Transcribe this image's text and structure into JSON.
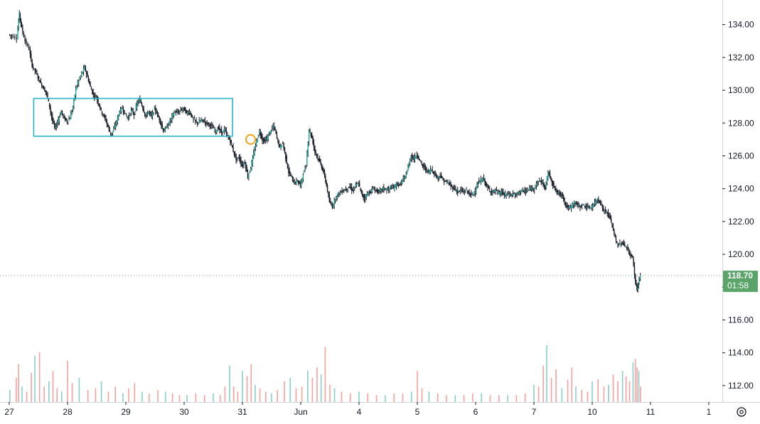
{
  "chart_data": {
    "type": "candlestick",
    "title": "",
    "xlabel": "",
    "ylabel": "",
    "ylim": [
      111,
      135.5
    ],
    "y_ticks": [
      112,
      114,
      116,
      118,
      120,
      122,
      124,
      126,
      128,
      130,
      132,
      134
    ],
    "y_tick_labels": [
      "112.00",
      "114.00",
      "116.00",
      "118.00",
      "120.00",
      "122.00",
      "124.00",
      "126.00",
      "128.00",
      "130.00",
      "132.00",
      "134.00"
    ],
    "x_tick_labels": [
      "27",
      "28",
      "29",
      "30",
      "31",
      "Jun",
      "4",
      "5",
      "6",
      "7",
      "10",
      "11",
      "1"
    ],
    "x_tick_days": [
      0,
      1,
      2,
      3,
      4,
      5,
      6,
      7,
      8,
      9,
      10,
      11,
      12
    ],
    "x_range": [
      0.0,
      12.1
    ],
    "grid": false,
    "last_price": 118.7,
    "last_price_label": "118.70",
    "countdown_label": "01:58",
    "colors": {
      "up": "#26a69a",
      "down": "#ef5350",
      "wick": "#131722",
      "box": "#26b6c9",
      "marker": "#f2a118",
      "price_tag": "#5aa469"
    },
    "price_path": [
      [
        0.0,
        133.4
      ],
      [
        0.05,
        133.3
      ],
      [
        0.14,
        133.2
      ],
      [
        0.18,
        134.7
      ],
      [
        0.22,
        133.8
      ],
      [
        0.28,
        133.0
      ],
      [
        0.35,
        132.5
      ],
      [
        0.4,
        131.5
      ],
      [
        0.45,
        131.2
      ],
      [
        0.5,
        130.8
      ],
      [
        0.55,
        130.4
      ],
      [
        0.6,
        130.1
      ],
      [
        0.65,
        129.8
      ],
      [
        0.7,
        129.0
      ],
      [
        0.75,
        128.1
      ],
      [
        0.8,
        127.7
      ],
      [
        0.85,
        128.2
      ],
      [
        0.9,
        128.7
      ],
      [
        0.95,
        128.3
      ],
      [
        1.0,
        128.1
      ],
      [
        1.05,
        128.3
      ],
      [
        1.1,
        129.0
      ],
      [
        1.15,
        130.1
      ],
      [
        1.2,
        130.6
      ],
      [
        1.25,
        131.0
      ],
      [
        1.3,
        131.4
      ],
      [
        1.35,
        130.8
      ],
      [
        1.4,
        130.2
      ],
      [
        1.45,
        129.7
      ],
      [
        1.5,
        129.6
      ],
      [
        1.55,
        129.1
      ],
      [
        1.6,
        128.6
      ],
      [
        1.65,
        128.3
      ],
      [
        1.7,
        127.8
      ],
      [
        1.75,
        127.3
      ],
      [
        1.8,
        127.6
      ],
      [
        1.85,
        128.1
      ],
      [
        1.9,
        128.7
      ],
      [
        1.95,
        128.9
      ],
      [
        2.0,
        128.5
      ],
      [
        2.05,
        128.3
      ],
      [
        2.1,
        128.8
      ],
      [
        2.15,
        128.5
      ],
      [
        2.2,
        129.2
      ],
      [
        2.25,
        129.4
      ],
      [
        2.3,
        128.9
      ],
      [
        2.35,
        128.4
      ],
      [
        2.4,
        128.7
      ],
      [
        2.45,
        128.4
      ],
      [
        2.5,
        128.9
      ],
      [
        2.55,
        128.5
      ],
      [
        2.6,
        128.1
      ],
      [
        2.65,
        127.5
      ],
      [
        2.7,
        127.7
      ],
      [
        2.75,
        128.0
      ],
      [
        2.8,
        128.4
      ],
      [
        2.85,
        128.7
      ],
      [
        2.9,
        128.6
      ],
      [
        2.95,
        128.8
      ],
      [
        3.0,
        128.9
      ],
      [
        3.05,
        128.6
      ],
      [
        3.1,
        128.7
      ],
      [
        3.15,
        128.3
      ],
      [
        3.2,
        128.1
      ],
      [
        3.25,
        128.0
      ],
      [
        3.3,
        128.2
      ],
      [
        3.35,
        128.1
      ],
      [
        3.4,
        128.0
      ],
      [
        3.45,
        127.9
      ],
      [
        3.5,
        127.7
      ],
      [
        3.55,
        127.5
      ],
      [
        3.6,
        127.7
      ],
      [
        3.65,
        127.4
      ],
      [
        3.7,
        127.6
      ],
      [
        3.75,
        127.2
      ],
      [
        3.8,
        126.9
      ],
      [
        3.85,
        126.3
      ],
      [
        3.9,
        125.8
      ],
      [
        3.95,
        125.9
      ],
      [
        4.0,
        125.4
      ],
      [
        4.05,
        125.6
      ],
      [
        4.1,
        124.7
      ],
      [
        4.15,
        125.3
      ],
      [
        4.2,
        126.1
      ],
      [
        4.25,
        126.9
      ],
      [
        4.3,
        127.5
      ],
      [
        4.35,
        127.0
      ],
      [
        4.4,
        126.9
      ],
      [
        4.45,
        127.2
      ],
      [
        4.5,
        127.6
      ],
      [
        4.55,
        127.8
      ],
      [
        4.6,
        127.1
      ],
      [
        4.65,
        126.5
      ],
      [
        4.7,
        126.8
      ],
      [
        4.75,
        125.9
      ],
      [
        4.8,
        125.0
      ],
      [
        4.85,
        124.7
      ],
      [
        4.9,
        124.3
      ],
      [
        4.95,
        124.5
      ],
      [
        5.0,
        124.2
      ],
      [
        5.05,
        124.9
      ],
      [
        5.1,
        125.4
      ],
      [
        5.15,
        127.6
      ],
      [
        5.2,
        127.1
      ],
      [
        5.25,
        126.3
      ],
      [
        5.3,
        125.9
      ],
      [
        5.35,
        125.5
      ],
      [
        5.4,
        125.0
      ],
      [
        5.45,
        124.2
      ],
      [
        5.5,
        123.2
      ],
      [
        5.55,
        122.9
      ],
      [
        5.6,
        123.4
      ],
      [
        5.65,
        123.7
      ],
      [
        5.7,
        123.8
      ],
      [
        5.75,
        123.9
      ],
      [
        5.8,
        124.0
      ],
      [
        5.85,
        124.1
      ],
      [
        5.9,
        123.9
      ],
      [
        5.95,
        124.2
      ],
      [
        6.0,
        124.3
      ],
      [
        6.05,
        123.7
      ],
      [
        6.1,
        123.4
      ],
      [
        6.15,
        123.7
      ],
      [
        6.2,
        123.8
      ],
      [
        6.25,
        124.0
      ],
      [
        6.3,
        123.9
      ],
      [
        6.35,
        123.8
      ],
      [
        6.4,
        124.0
      ],
      [
        6.45,
        124.0
      ],
      [
        6.5,
        123.9
      ],
      [
        6.55,
        124.1
      ],
      [
        6.6,
        124.0
      ],
      [
        6.65,
        124.3
      ],
      [
        6.7,
        124.2
      ],
      [
        6.75,
        124.5
      ],
      [
        6.8,
        124.7
      ],
      [
        6.85,
        125.3
      ],
      [
        6.9,
        126.0
      ],
      [
        6.95,
        125.8
      ],
      [
        7.0,
        126.1
      ],
      [
        7.05,
        125.7
      ],
      [
        7.1,
        125.4
      ],
      [
        7.15,
        125.2
      ],
      [
        7.2,
        125.0
      ],
      [
        7.25,
        125.2
      ],
      [
        7.3,
        124.9
      ],
      [
        7.35,
        124.7
      ],
      [
        7.4,
        124.8
      ],
      [
        7.45,
        124.5
      ],
      [
        7.5,
        124.4
      ],
      [
        7.55,
        124.3
      ],
      [
        7.6,
        124.1
      ],
      [
        7.65,
        124.0
      ],
      [
        7.7,
        123.8
      ],
      [
        7.75,
        123.9
      ],
      [
        7.8,
        123.8
      ],
      [
        7.85,
        123.9
      ],
      [
        7.9,
        123.7
      ],
      [
        7.95,
        123.6
      ],
      [
        8.0,
        123.9
      ],
      [
        8.05,
        124.3
      ],
      [
        8.1,
        124.5
      ],
      [
        8.15,
        124.6
      ],
      [
        8.2,
        124.1
      ],
      [
        8.25,
        123.9
      ],
      [
        8.3,
        123.8
      ],
      [
        8.35,
        123.9
      ],
      [
        8.4,
        123.7
      ],
      [
        8.45,
        123.8
      ],
      [
        8.5,
        123.6
      ],
      [
        8.55,
        123.7
      ],
      [
        8.6,
        123.6
      ],
      [
        8.65,
        123.7
      ],
      [
        8.7,
        123.6
      ],
      [
        8.75,
        123.8
      ],
      [
        8.8,
        123.9
      ],
      [
        8.85,
        123.8
      ],
      [
        8.9,
        123.9
      ],
      [
        8.95,
        124.0
      ],
      [
        9.0,
        124.0
      ],
      [
        9.05,
        124.3
      ],
      [
        9.1,
        124.5
      ],
      [
        9.15,
        124.4
      ],
      [
        9.2,
        124.0
      ],
      [
        9.25,
        125.0
      ],
      [
        9.3,
        124.6
      ],
      [
        9.35,
        124.1
      ],
      [
        9.4,
        123.8
      ],
      [
        9.45,
        123.7
      ],
      [
        9.5,
        123.6
      ],
      [
        9.55,
        123.0
      ],
      [
        9.6,
        122.8
      ],
      [
        9.65,
        122.9
      ],
      [
        9.7,
        123.2
      ],
      [
        9.75,
        123.0
      ],
      [
        9.8,
        122.9
      ],
      [
        9.85,
        123.0
      ],
      [
        9.9,
        122.9
      ],
      [
        9.95,
        122.8
      ],
      [
        10.0,
        122.9
      ],
      [
        10.05,
        123.1
      ],
      [
        10.1,
        123.4
      ],
      [
        10.15,
        123.1
      ],
      [
        10.2,
        122.7
      ],
      [
        10.25,
        122.6
      ],
      [
        10.3,
        122.3
      ],
      [
        10.35,
        121.8
      ],
      [
        10.4,
        121.0
      ],
      [
        10.45,
        120.5
      ],
      [
        10.5,
        120.7
      ],
      [
        10.55,
        120.6
      ],
      [
        10.6,
        120.4
      ],
      [
        10.65,
        120.0
      ],
      [
        10.7,
        119.8
      ],
      [
        10.75,
        118.3
      ],
      [
        10.78,
        117.9
      ],
      [
        10.8,
        118.2
      ],
      [
        10.83,
        118.7
      ]
    ],
    "volume": {
      "vmax": 33,
      "bars": [
        [
          0.01,
          7
        ],
        [
          0.12,
          14
        ],
        [
          0.16,
          22
        ],
        [
          0.22,
          9
        ],
        [
          0.3,
          6
        ],
        [
          0.38,
          17
        ],
        [
          0.44,
          27
        ],
        [
          0.52,
          29
        ],
        [
          0.6,
          9
        ],
        [
          0.68,
          12
        ],
        [
          0.75,
          18
        ],
        [
          0.82,
          8
        ],
        [
          0.9,
          6
        ],
        [
          1.0,
          24
        ],
        [
          1.08,
          11
        ],
        [
          1.2,
          14
        ],
        [
          1.35,
          7
        ],
        [
          1.48,
          8
        ],
        [
          1.58,
          12
        ],
        [
          1.7,
          6
        ],
        [
          1.82,
          9
        ],
        [
          1.95,
          5
        ],
        [
          2.05,
          8
        ],
        [
          2.15,
          11
        ],
        [
          2.28,
          6
        ],
        [
          2.4,
          5
        ],
        [
          2.55,
          7
        ],
        [
          2.68,
          6
        ],
        [
          2.8,
          5
        ],
        [
          2.92,
          4
        ],
        [
          3.05,
          4
        ],
        [
          3.2,
          5
        ],
        [
          3.35,
          4
        ],
        [
          3.5,
          5
        ],
        [
          3.62,
          4
        ],
        [
          3.7,
          9
        ],
        [
          3.78,
          21
        ],
        [
          3.85,
          9
        ],
        [
          3.92,
          6
        ],
        [
          4.0,
          18
        ],
        [
          4.08,
          15
        ],
        [
          4.15,
          22
        ],
        [
          4.22,
          10
        ],
        [
          4.3,
          8
        ],
        [
          4.4,
          6
        ],
        [
          4.5,
          5
        ],
        [
          4.6,
          7
        ],
        [
          4.72,
          12
        ],
        [
          4.82,
          14
        ],
        [
          4.92,
          8
        ],
        [
          5.02,
          9
        ],
        [
          5.12,
          18
        ],
        [
          5.2,
          14
        ],
        [
          5.28,
          20
        ],
        [
          5.35,
          16
        ],
        [
          5.42,
          32
        ],
        [
          5.5,
          10
        ],
        [
          5.58,
          8
        ],
        [
          5.7,
          6
        ],
        [
          5.85,
          5
        ],
        [
          6.0,
          6
        ],
        [
          6.15,
          5
        ],
        [
          6.3,
          4
        ],
        [
          6.45,
          4
        ],
        [
          6.6,
          5
        ],
        [
          6.75,
          5
        ],
        [
          6.9,
          6
        ],
        [
          7.0,
          18
        ],
        [
          7.08,
          8
        ],
        [
          7.2,
          6
        ],
        [
          7.35,
          5
        ],
        [
          7.5,
          4
        ],
        [
          7.65,
          4
        ],
        [
          7.8,
          4
        ],
        [
          7.95,
          5
        ],
        [
          8.1,
          5
        ],
        [
          8.25,
          4
        ],
        [
          8.4,
          4
        ],
        [
          8.55,
          4
        ],
        [
          8.7,
          4
        ],
        [
          8.85,
          5
        ],
        [
          9.0,
          10
        ],
        [
          9.08,
          9
        ],
        [
          9.16,
          21
        ],
        [
          9.22,
          33
        ],
        [
          9.3,
          14
        ],
        [
          9.38,
          19
        ],
        [
          9.48,
          8
        ],
        [
          9.58,
          13
        ],
        [
          9.65,
          20
        ],
        [
          9.72,
          9
        ],
        [
          9.82,
          7
        ],
        [
          9.92,
          6
        ],
        [
          10.0,
          12
        ],
        [
          10.1,
          13
        ],
        [
          10.2,
          9
        ],
        [
          10.28,
          10
        ],
        [
          10.36,
          16
        ],
        [
          10.44,
          12
        ],
        [
          10.52,
          18
        ],
        [
          10.58,
          15
        ],
        [
          10.64,
          12
        ],
        [
          10.7,
          23
        ],
        [
          10.74,
          25
        ],
        [
          10.77,
          20
        ],
        [
          10.8,
          18
        ],
        [
          10.83,
          9
        ]
      ]
    },
    "annotations": [
      {
        "type": "rectangle",
        "x0": 0.42,
        "x1": 3.83,
        "y0": 127.2,
        "y1": 129.5
      },
      {
        "type": "circle-marker",
        "x": 4.14,
        "y": 127.0
      }
    ]
  }
}
